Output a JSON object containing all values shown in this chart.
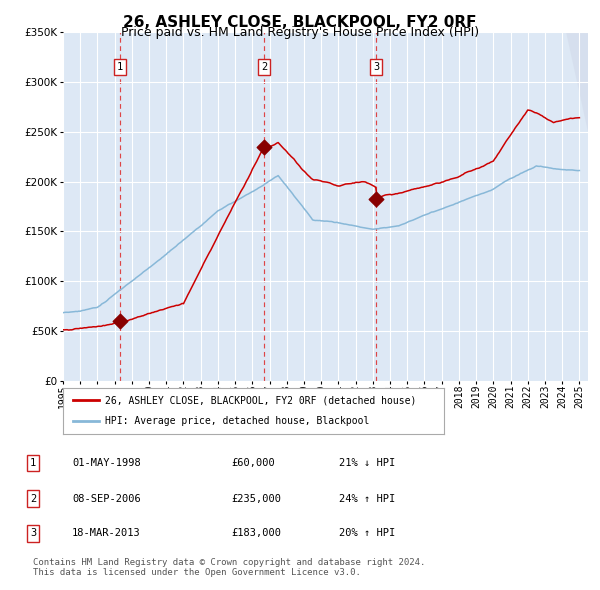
{
  "title": "26, ASHLEY CLOSE, BLACKPOOL, FY2 0RF",
  "subtitle": "Price paid vs. HM Land Registry's House Price Index (HPI)",
  "ylim": [
    0,
    350000
  ],
  "yticks": [
    0,
    50000,
    100000,
    150000,
    200000,
    250000,
    300000,
    350000
  ],
  "background_color": "#dde8f5",
  "grid_color": "#ffffff",
  "red_line_color": "#cc0000",
  "blue_line_color": "#88b8d8",
  "dashed_line_color": "#dd3333",
  "transaction_marker_color": "#880000",
  "transactions": [
    {
      "date_num": 1998.33,
      "price": 60000,
      "label": "1"
    },
    {
      "date_num": 2006.67,
      "price": 235000,
      "label": "2"
    },
    {
      "date_num": 2013.21,
      "price": 183000,
      "label": "3"
    }
  ],
  "legend_entries": [
    {
      "label": "26, ASHLEY CLOSE, BLACKPOOL, FY2 0RF (detached house)",
      "color": "#cc0000"
    },
    {
      "label": "HPI: Average price, detached house, Blackpool",
      "color": "#88b8d8"
    }
  ],
  "table_rows": [
    {
      "num": "1",
      "date": "01-MAY-1998",
      "price": "£60,000",
      "change": "21% ↓ HPI"
    },
    {
      "num": "2",
      "date": "08-SEP-2006",
      "price": "£235,000",
      "change": "24% ↑ HPI"
    },
    {
      "num": "3",
      "date": "18-MAR-2013",
      "price": "£183,000",
      "change": "20% ↑ HPI"
    }
  ],
  "footer": "Contains HM Land Registry data © Crown copyright and database right 2024.\nThis data is licensed under the Open Government Licence v3.0.",
  "title_fontsize": 11,
  "subtitle_fontsize": 9,
  "tick_fontsize": 7,
  "footer_fontsize": 6.5
}
